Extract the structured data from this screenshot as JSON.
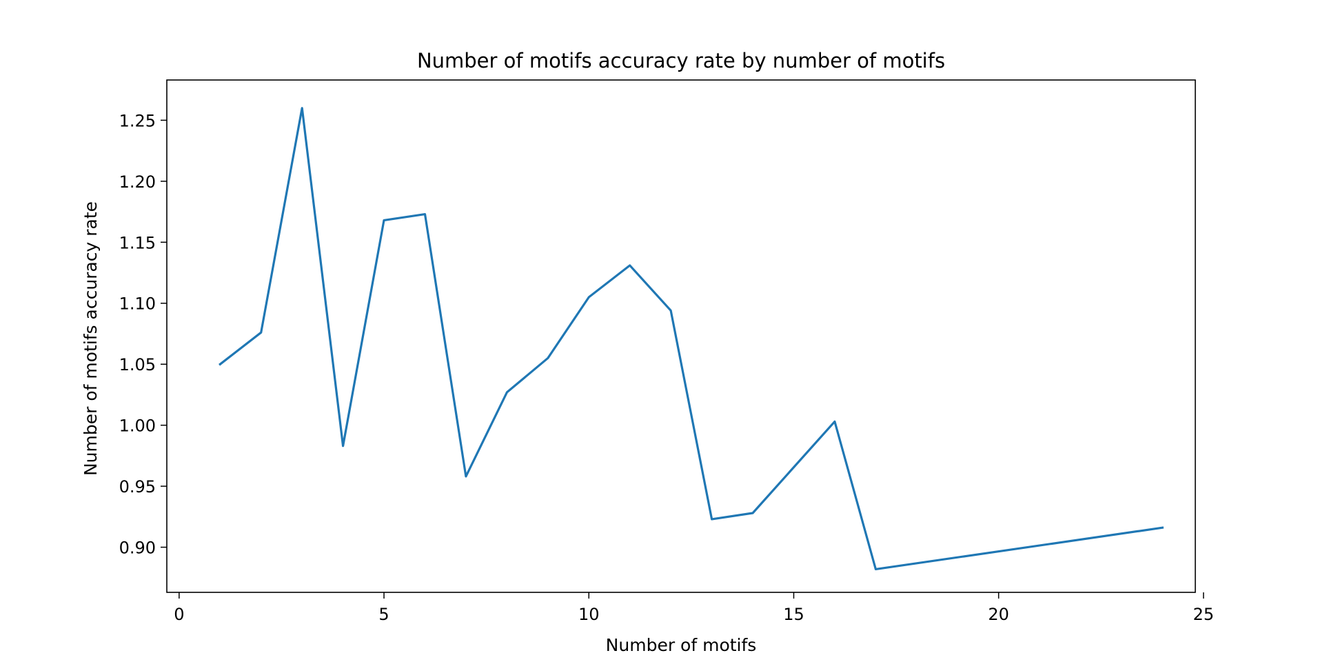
{
  "chart_data": {
    "type": "line",
    "title": "Number of motifs accuracy rate by number of motifs",
    "xlabel": "Number of motifs",
    "ylabel": "Number of motifs accuracy rate",
    "xlim": [
      -0.3,
      24.8
    ],
    "ylim": [
      0.863,
      1.283
    ],
    "xticks": [
      0,
      5,
      10,
      15,
      20,
      25
    ],
    "xtick_labels": [
      "0",
      "5",
      "10",
      "15",
      "20",
      "25"
    ],
    "yticks": [
      0.9,
      0.95,
      1.0,
      1.05,
      1.1,
      1.15,
      1.2,
      1.25
    ],
    "ytick_labels": [
      "0.90",
      "0.95",
      "1.00",
      "1.05",
      "1.10",
      "1.15",
      "1.20",
      "1.25"
    ],
    "grid": false,
    "legend": "none",
    "series": [
      {
        "color": "#1f77b4",
        "x": [
          1,
          2,
          3,
          4,
          5,
          6,
          7,
          8,
          9,
          10,
          11,
          12,
          13,
          14,
          16,
          17,
          24
        ],
        "y": [
          1.05,
          1.076,
          1.26,
          0.983,
          1.168,
          1.173,
          0.958,
          1.027,
          1.055,
          1.105,
          1.131,
          1.094,
          0.923,
          0.928,
          1.003,
          0.882,
          0.916
        ]
      }
    ]
  }
}
